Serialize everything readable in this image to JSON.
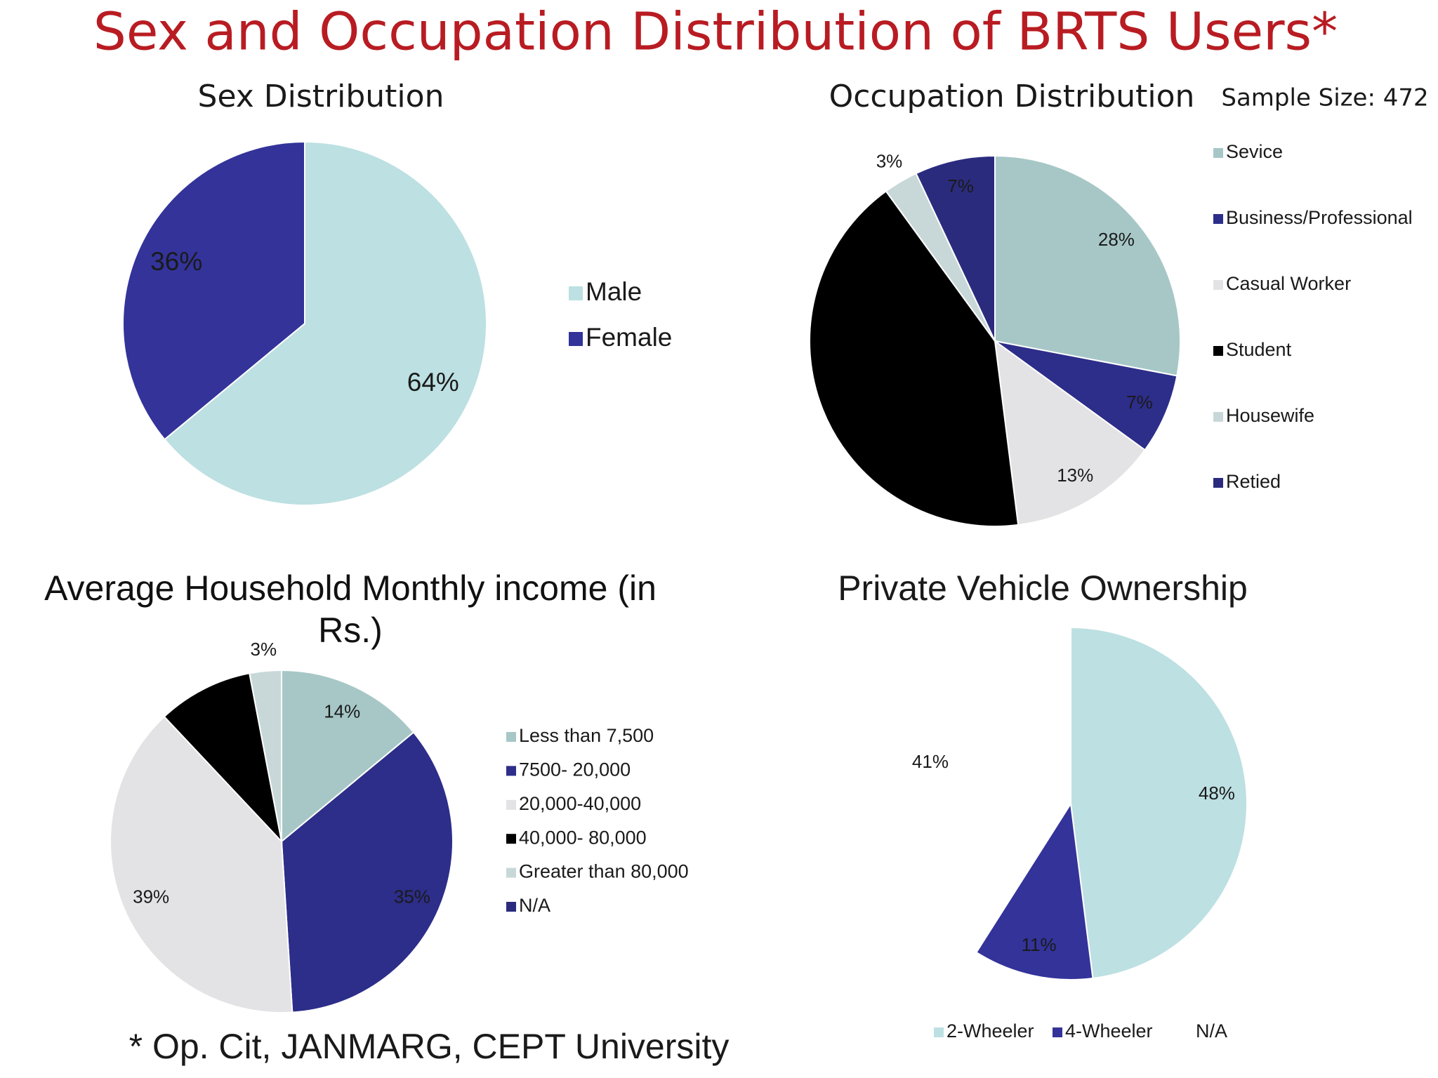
{
  "title": "Sex and Occupation Distribution of BRTS Users*",
  "sample_size": "Sample Size: 472",
  "footnote": "* Op. Cit, JANMARG, CEPT University",
  "chart_data": [
    {
      "type": "pie",
      "title": "Sex Distribution",
      "categories": [
        "Male",
        "Female"
      ],
      "values": [
        64,
        36
      ],
      "value_labels": [
        "64%",
        "36%"
      ],
      "colors": [
        "#bde0e2",
        "#33339a"
      ]
    },
    {
      "type": "pie",
      "title": "Occupation Distribution",
      "categories": [
        "Sevice",
        "Business/Professional",
        "Casual Worker",
        "Student",
        "Housewife",
        "Retied"
      ],
      "values": [
        28,
        7,
        13,
        42,
        3,
        7
      ],
      "value_labels": [
        "28%",
        "7%",
        "13%",
        null,
        "3%",
        "7%"
      ],
      "colors": [
        "#a7c7c7",
        "#2d2d8a",
        "#e3e3e5",
        "#000000",
        "#c8d8d8",
        "#2b2b7e"
      ]
    },
    {
      "type": "pie",
      "title": "Average Household Monthly income (in Rs.)",
      "categories": [
        "Less than 7,500",
        "7500- 20,000",
        "20,000-40,000",
        "40,000- 80,000",
        "Greater than 80,000",
        "N/A"
      ],
      "values": [
        14,
        35,
        39,
        9,
        3,
        0
      ],
      "value_labels": [
        "14%",
        "35%",
        "39%",
        null,
        "3%",
        null
      ],
      "colors": [
        "#a7c7c7",
        "#2d2d8a",
        "#e3e3e5",
        "#000000",
        "#c8d8d8",
        "#2b2b7e"
      ]
    },
    {
      "type": "pie",
      "title": "Private Vehicle Ownership",
      "categories": [
        "2-Wheeler",
        "4-Wheeler",
        "N/A"
      ],
      "values": [
        48,
        11,
        41
      ],
      "value_labels": [
        "48%",
        "11%",
        "41%"
      ],
      "colors": [
        "#bde0e2",
        "#33339a",
        "#ffffff"
      ]
    }
  ]
}
